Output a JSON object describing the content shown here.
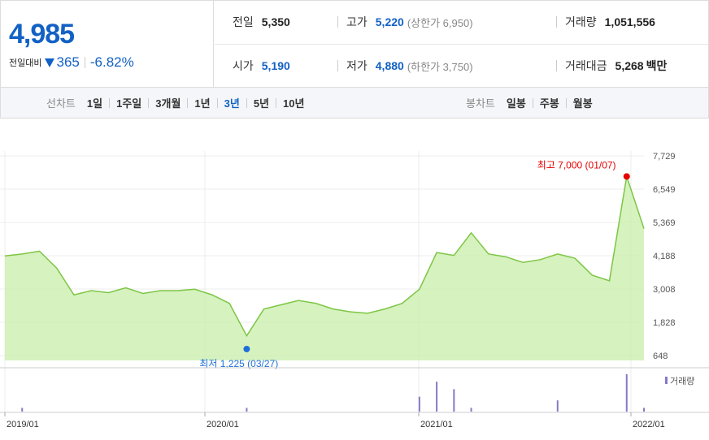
{
  "quote": {
    "price": "4,985",
    "change_label": "전일대비",
    "change_value": "365",
    "change_pct": "-6.82%",
    "direction": "down",
    "color_down": "#1261c4"
  },
  "stats": {
    "prev_close": {
      "label": "전일",
      "value": "5,350"
    },
    "high": {
      "label": "고가",
      "value": "5,220",
      "limit_label": "상한가",
      "limit_value": "6,950"
    },
    "volume": {
      "label": "거래량",
      "value": "1,051,556"
    },
    "open": {
      "label": "시가",
      "value": "5,190"
    },
    "low": {
      "label": "저가",
      "value": "4,880",
      "limit_label": "하한가",
      "limit_value": "3,750"
    },
    "amount": {
      "label": "거래대금",
      "value": "5,268",
      "unit": "백만"
    }
  },
  "line_tabs": {
    "label": "선차트",
    "items": [
      "1일",
      "1주일",
      "3개월",
      "1년",
      "3년",
      "5년",
      "10년"
    ],
    "active_index": 4
  },
  "candle_tabs": {
    "label": "봉차트",
    "items": [
      "일봉",
      "주봉",
      "월봉"
    ]
  },
  "chart_data": {
    "type": "area",
    "ylim": [
      648,
      7729
    ],
    "y_ticks": [
      "7,729",
      "6,549",
      "5,369",
      "4,188",
      "3,008",
      "1,828",
      "648"
    ],
    "x_ticks": [
      "2019/01",
      "2020/01",
      "2021/01",
      "2022/01"
    ],
    "x": [
      "2019-01",
      "2019-02",
      "2019-03",
      "2019-04",
      "2019-05",
      "2019-06",
      "2019-07",
      "2019-08",
      "2019-09",
      "2019-10",
      "2019-11",
      "2019-12",
      "2020-01",
      "2020-02",
      "2020-03",
      "2020-04",
      "2020-05",
      "2020-06",
      "2020-07",
      "2020-08",
      "2020-09",
      "2020-10",
      "2020-11",
      "2020-12",
      "2021-01",
      "2021-02",
      "2021-03",
      "2021-04",
      "2021-05",
      "2021-06",
      "2021-07",
      "2021-08",
      "2021-09",
      "2021-10",
      "2021-11",
      "2021-12",
      "2022-01",
      "2022-01"
    ],
    "values": [
      4180,
      4250,
      4350,
      3750,
      2800,
      2950,
      2880,
      3050,
      2850,
      2950,
      2950,
      3000,
      2800,
      2500,
      1350,
      2300,
      2450,
      2600,
      2500,
      2300,
      2200,
      2150,
      2300,
      2500,
      3000,
      4300,
      4200,
      5000,
      4250,
      4150,
      3950,
      4050,
      4250,
      4100,
      3500,
      3300,
      7000,
      5150
    ],
    "high": {
      "label": "최고 7,000 (01/07)",
      "value": 7000,
      "color": "#e60000"
    },
    "low": {
      "label": "최저 1,225 (03/27)",
      "value": 1225,
      "color": "#1e6fd9"
    },
    "line_color": "#7dc644",
    "fill_color": "#c8eeaa",
    "volume": {
      "legend": "거래량",
      "color": "#8878c8",
      "values": [
        0,
        1,
        0,
        0,
        0,
        0,
        0,
        0,
        0,
        0,
        0,
        0,
        0,
        0,
        1,
        0,
        0,
        0,
        0,
        0,
        0,
        0,
        0,
        0,
        4,
        8,
        6,
        1,
        0,
        0,
        0,
        0,
        3,
        0,
        0,
        0,
        10,
        1
      ]
    }
  }
}
